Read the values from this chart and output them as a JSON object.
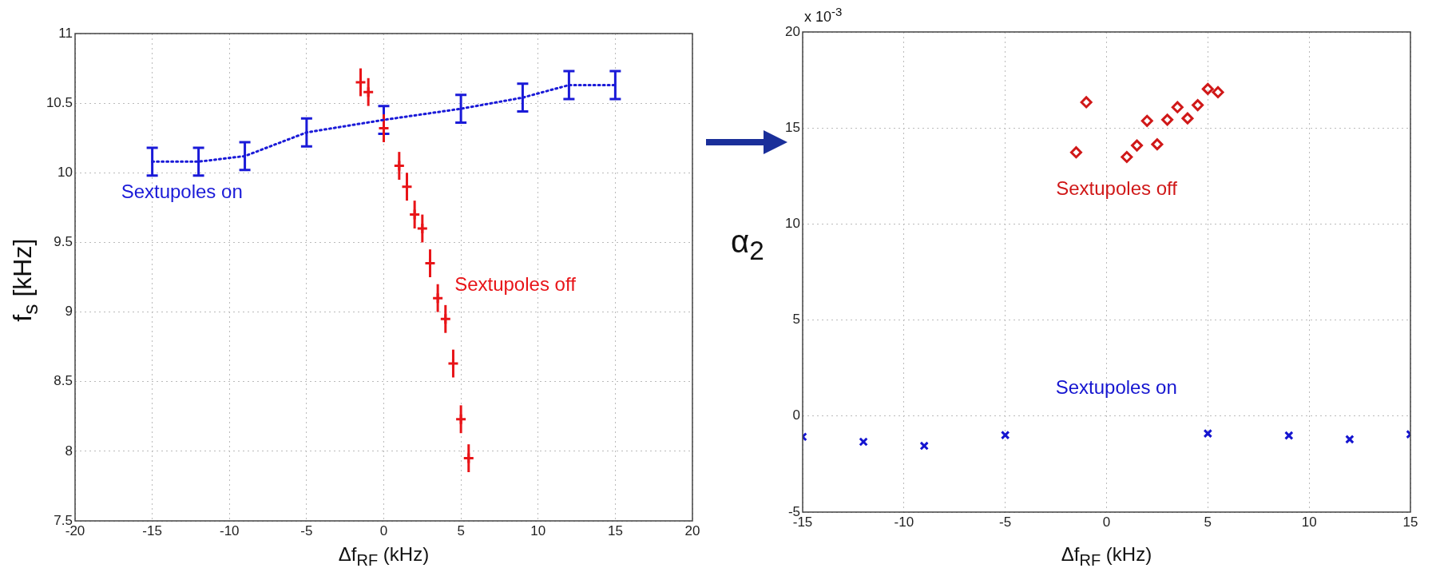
{
  "chart_data": [
    {
      "type": "line",
      "xlabel": "Δf$_{RF}$ (kHz)",
      "ylabel": "f$_{s}$ [kHz]",
      "xlim": [
        -20,
        20
      ],
      "xticks": [
        -20,
        -15,
        -10,
        -5,
        0,
        5,
        10,
        15,
        20
      ],
      "ylim": [
        7.5,
        11
      ],
      "yticks": [
        7.5,
        8,
        8.5,
        9,
        9.5,
        10,
        10.5,
        11
      ],
      "grid": true,
      "series": [
        {
          "name": "Sextupoles on",
          "color": "#1a1ad8",
          "marker": "none",
          "line_style": "dotted",
          "x": [
            -15,
            -12,
            -9,
            -5,
            0,
            5,
            9,
            12,
            15
          ],
          "values": [
            10.08,
            10.08,
            10.12,
            10.29,
            10.38,
            10.46,
            10.54,
            10.63,
            10.63
          ],
          "errors": [
            0.1,
            0.1,
            0.1,
            0.1,
            0.1,
            0.1,
            0.1,
            0.1,
            0.1
          ]
        },
        {
          "name": "Sextupoles off",
          "type": "scatter",
          "color": "#e81418",
          "marker": "cross",
          "x": [
            -1.5,
            -1,
            0,
            1,
            1.5,
            2,
            2.5,
            3,
            3.5,
            4,
            4.5,
            5,
            5.5
          ],
          "values": [
            10.65,
            10.58,
            10.32,
            10.05,
            9.9,
            9.7,
            9.6,
            9.35,
            9.1,
            8.95,
            8.63,
            8.23,
            7.95
          ],
          "errors": [
            0.1,
            0.1,
            0.1,
            0.1,
            0.1,
            0.1,
            0.1,
            0.1,
            0.1,
            0.1,
            0.1,
            0.1,
            0.1
          ]
        }
      ]
    },
    {
      "type": "scatter",
      "xlabel": "Δf$_{RF}$ (kHz)",
      "ylabel": "α$_{2}$",
      "annotations": [
        "x 10$^{-3}$"
      ],
      "xlim": [
        -15,
        15
      ],
      "xticks": [
        -15,
        -10,
        -5,
        0,
        5,
        10,
        15
      ],
      "ylim": [
        -5,
        20
      ],
      "yticks": [
        -5,
        0,
        5,
        10,
        15,
        20
      ],
      "grid": true,
      "series": [
        {
          "name": "Sextupoles on",
          "color": "#1414d0",
          "marker": "cross",
          "x": [
            -15,
            -12,
            -9,
            -5,
            5,
            9,
            12,
            15
          ],
          "values": [
            -1.08,
            -1.34,
            -1.55,
            -0.99,
            -0.91,
            -1.01,
            -1.21,
            -0.95
          ]
        },
        {
          "name": "Sextupoles off",
          "color": "#d01818",
          "marker": "diamond",
          "x": [
            -1.5,
            -1,
            1,
            1.5,
            2,
            2.5,
            3,
            3.5,
            4,
            4.5,
            5,
            5.5
          ],
          "values": [
            13.73,
            16.34,
            13.49,
            14.09,
            15.37,
            14.15,
            15.43,
            16.08,
            15.5,
            16.19,
            17.03,
            16.86
          ]
        }
      ]
    }
  ]
}
